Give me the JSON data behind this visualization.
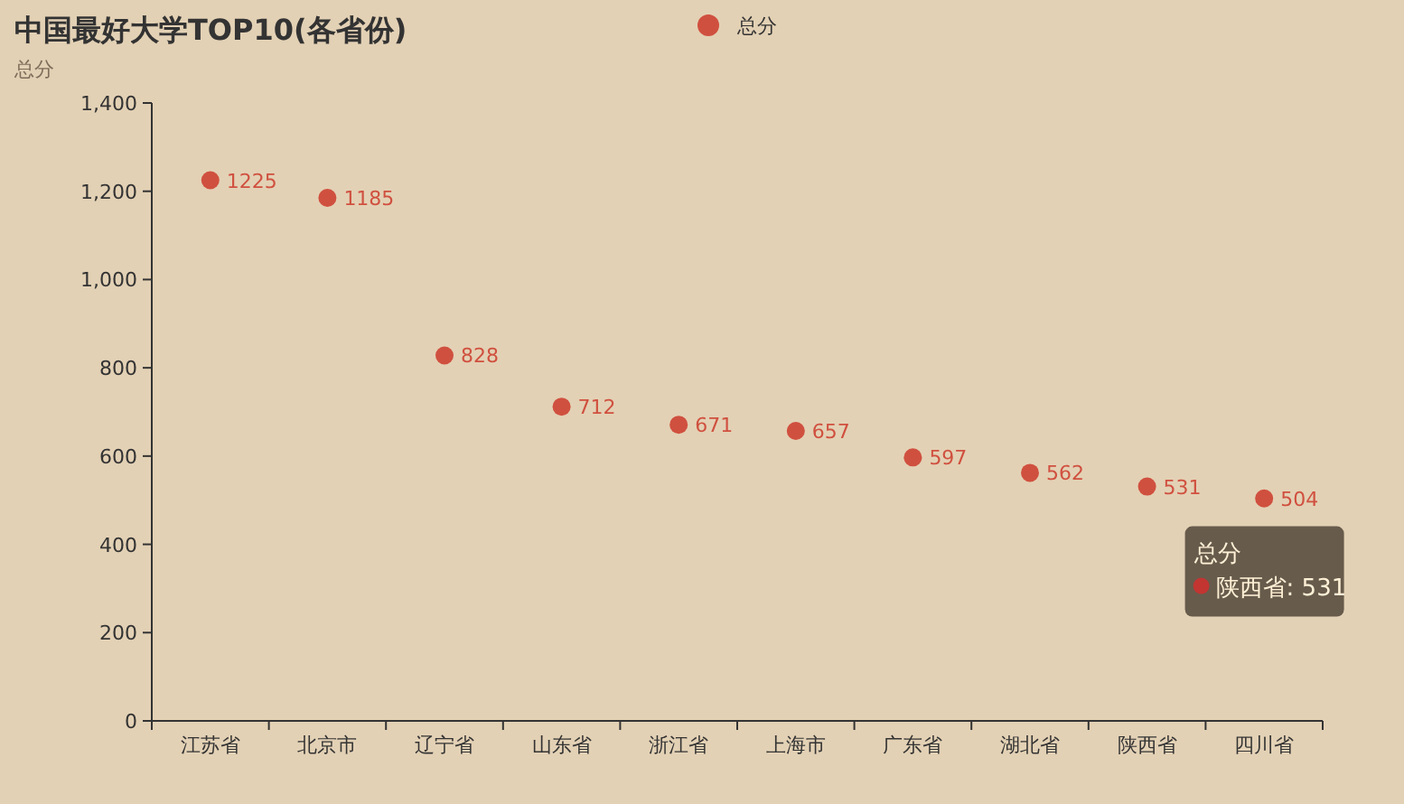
{
  "chart_data": {
    "type": "scatter",
    "title": "中国最好大学TOP10(各省份)",
    "subtitle": "总分",
    "categories": [
      "江苏省",
      "北京市",
      "辽宁省",
      "山东省",
      "浙江省",
      "上海市",
      "广东省",
      "湖北省",
      "陕西省",
      "四川省"
    ],
    "series": [
      {
        "name": "总分",
        "color": "#d0503f",
        "values": [
          1225,
          1185,
          828,
          712,
          671,
          657,
          597,
          562,
          531,
          504
        ]
      }
    ],
    "ylim": [
      0,
      1400
    ],
    "yticks": [
      0,
      200,
      400,
      600,
      800,
      {
        "value": 1000,
        "label": "1,000"
      },
      {
        "value": 1200,
        "label": "1,200"
      },
      {
        "value": 1400,
        "label": "1,400"
      }
    ],
    "data_labels": true,
    "legend": "top",
    "marker": "circle",
    "grid": false,
    "annotations": [
      "总分",
      "陕西省: 531"
    ]
  }
}
